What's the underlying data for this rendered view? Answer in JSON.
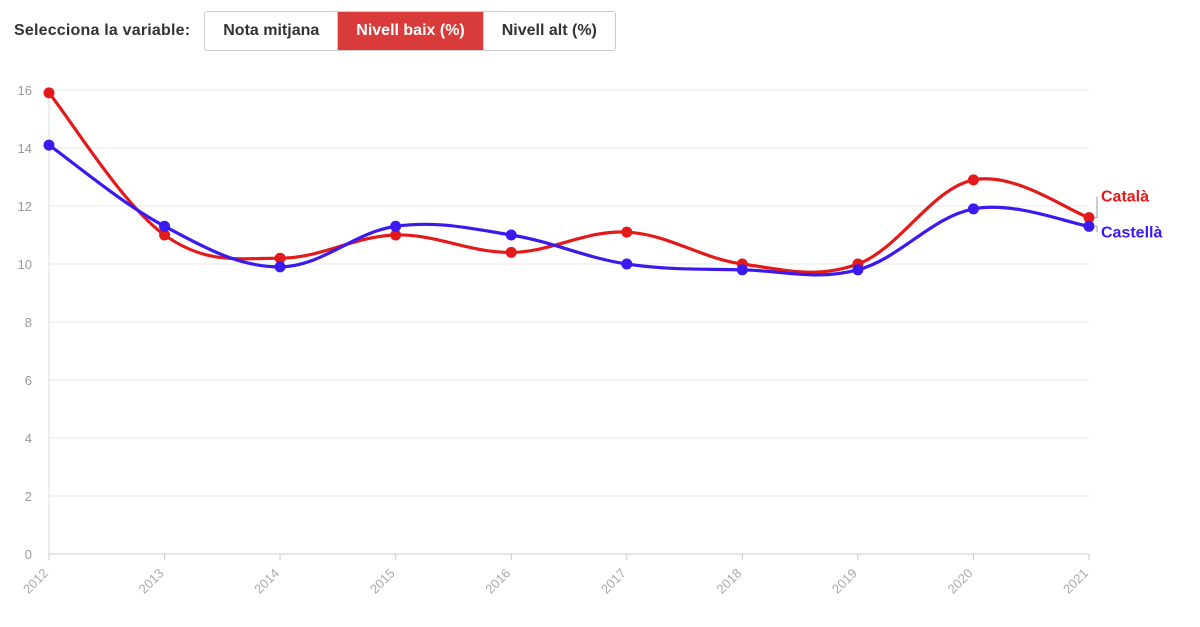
{
  "controls": {
    "label": "Selecciona la variable:",
    "buttons": [
      {
        "label": "Nota mitjana",
        "active": false
      },
      {
        "label": "Nivell baix (%)",
        "active": true
      },
      {
        "label": "Nivell alt (%)",
        "active": false
      }
    ],
    "active_color": "#d93a3a"
  },
  "chart_data": {
    "type": "line",
    "title": "",
    "xlabel": "",
    "ylabel": "",
    "categories": [
      "2012",
      "2013",
      "2014",
      "2015",
      "2016",
      "2017",
      "2018",
      "2019",
      "2020",
      "2021"
    ],
    "ylim": [
      0,
      16
    ],
    "yticks": [
      0,
      2,
      4,
      6,
      8,
      10,
      12,
      14,
      16
    ],
    "grid": true,
    "smooth": true,
    "series": [
      {
        "name": "Català",
        "color": "#e41a1a",
        "values": [
          15.9,
          11.0,
          10.2,
          11.0,
          10.4,
          11.1,
          10.0,
          10.0,
          12.9,
          11.6
        ]
      },
      {
        "name": "Castellà",
        "color": "#3a1aef",
        "values": [
          14.1,
          11.3,
          9.9,
          11.3,
          11.0,
          10.0,
          9.8,
          9.8,
          11.9,
          11.3
        ]
      }
    ]
  }
}
